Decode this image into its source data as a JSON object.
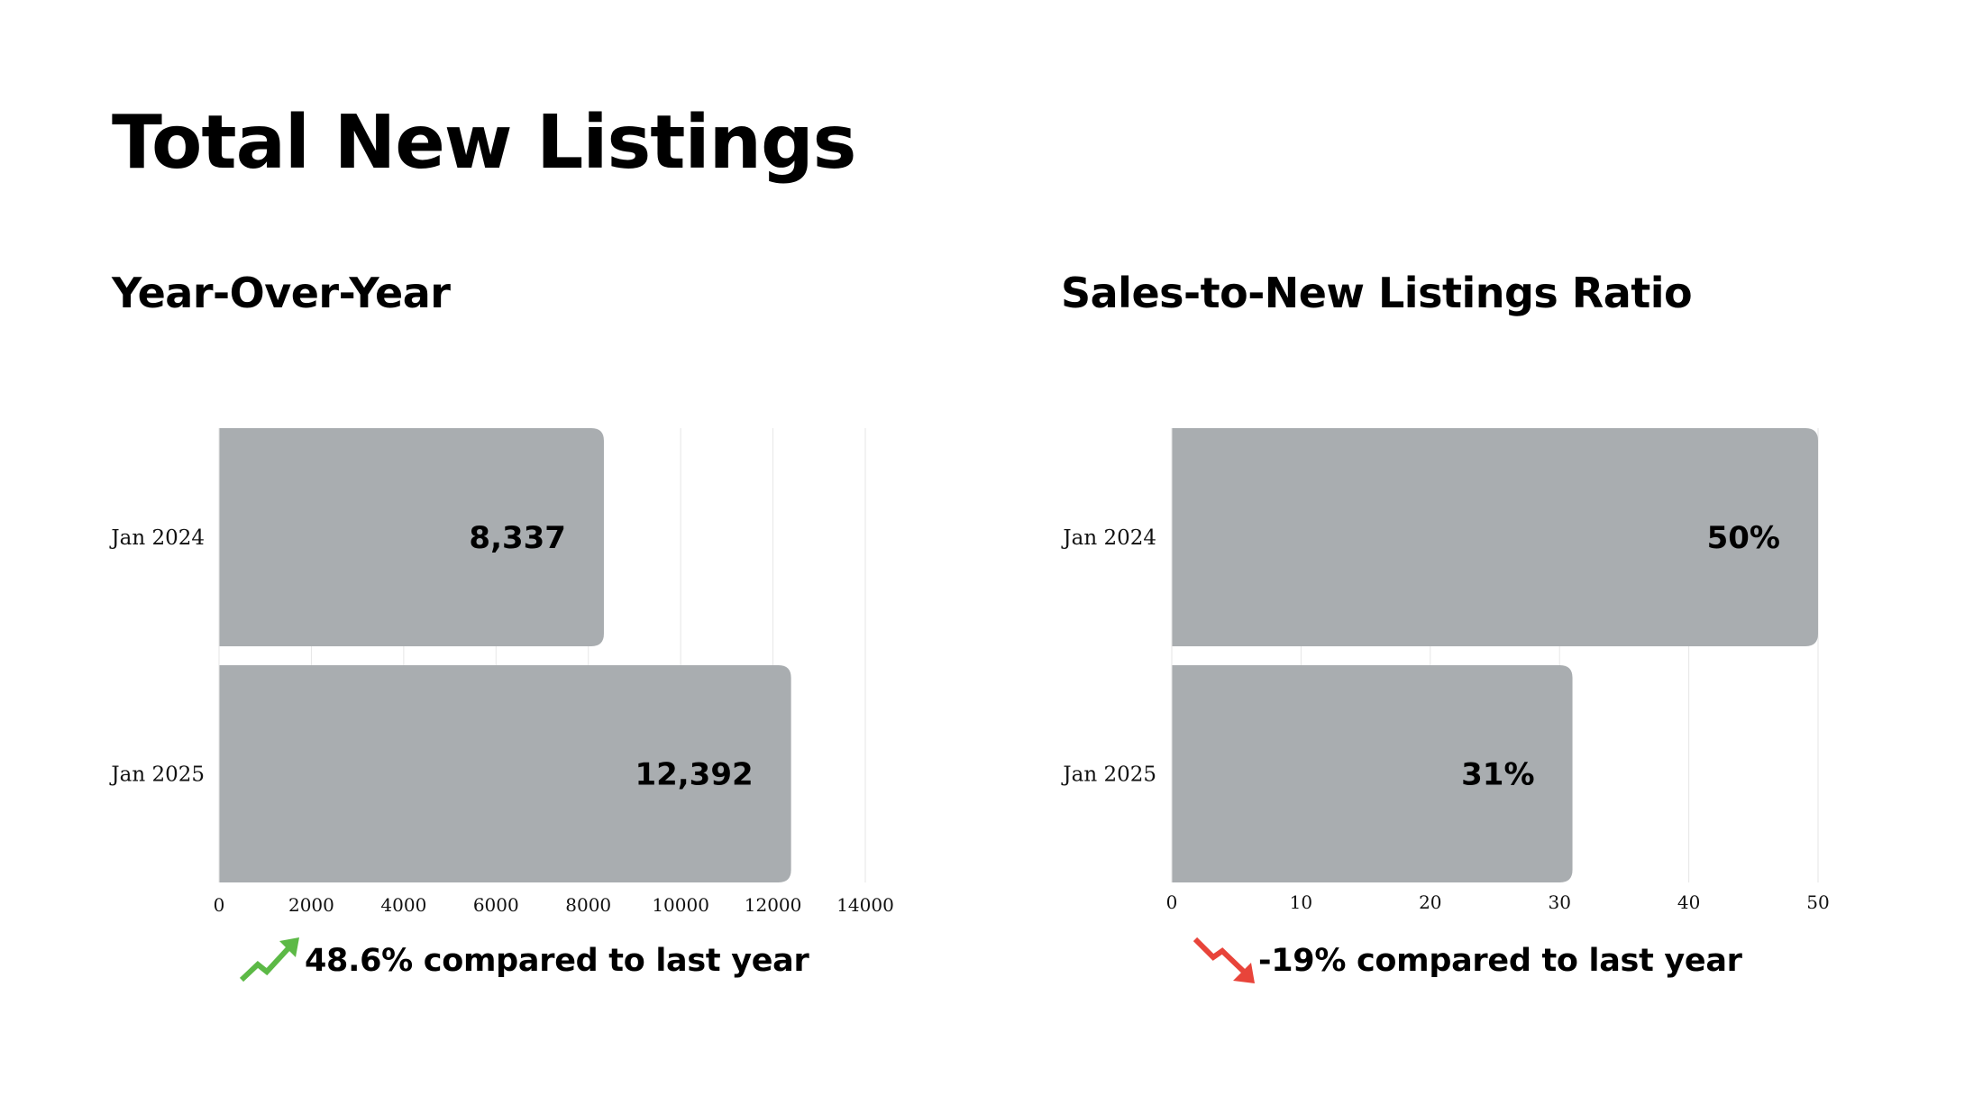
{
  "page": {
    "title": "Total New Listings"
  },
  "colors": {
    "bar": "#a9adb0",
    "grid": "#e6e6e6",
    "up": "#5cb946",
    "down": "#e8443a"
  },
  "panels": [
    {
      "title": "Year-Over-Year",
      "delta": {
        "direction": "up",
        "icon": "trend-up-arrow-icon",
        "text": "48.6% compared to last year"
      }
    },
    {
      "title": "Sales-to-New Listings Ratio",
      "delta": {
        "direction": "down",
        "icon": "trend-down-arrow-icon",
        "text": "-19% compared to last year"
      }
    }
  ],
  "chart_data": [
    {
      "type": "bar",
      "orientation": "horizontal",
      "title": "Year-Over-Year",
      "categories": [
        "Jan 2024",
        "Jan 2025"
      ],
      "values": [
        8337,
        12392
      ],
      "data_labels": [
        "8,337",
        "12,392"
      ],
      "xlim": [
        0,
        14000
      ],
      "xticks": [
        0,
        2000,
        4000,
        6000,
        8000,
        10000,
        12000,
        14000
      ],
      "grid": true,
      "legend": "none"
    },
    {
      "type": "bar",
      "orientation": "horizontal",
      "title": "Sales-to-New Listings Ratio",
      "categories": [
        "Jan 2024",
        "Jan 2025"
      ],
      "values": [
        50,
        31
      ],
      "data_labels": [
        "50%",
        "31%"
      ],
      "xlim": [
        0,
        50
      ],
      "xticks": [
        0,
        10,
        20,
        30,
        40,
        50
      ],
      "grid": true,
      "legend": "none"
    }
  ]
}
